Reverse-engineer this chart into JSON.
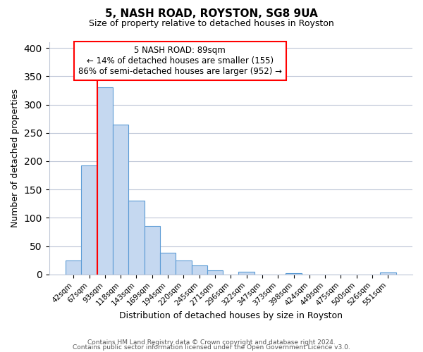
{
  "title": "5, NASH ROAD, ROYSTON, SG8 9UA",
  "subtitle": "Size of property relative to detached houses in Royston",
  "xlabel": "Distribution of detached houses by size in Royston",
  "ylabel": "Number of detached properties",
  "bar_labels": [
    "42sqm",
    "67sqm",
    "93sqm",
    "118sqm",
    "143sqm",
    "169sqm",
    "194sqm",
    "220sqm",
    "245sqm",
    "271sqm",
    "296sqm",
    "322sqm",
    "347sqm",
    "373sqm",
    "398sqm",
    "424sqm",
    "449sqm",
    "475sqm",
    "500sqm",
    "526sqm",
    "551sqm"
  ],
  "bar_values": [
    25,
    193,
    330,
    265,
    130,
    86,
    38,
    25,
    16,
    7,
    0,
    5,
    0,
    0,
    2,
    0,
    0,
    0,
    0,
    0,
    3
  ],
  "bar_color": "#c5d8f0",
  "bar_edge_color": "#5b9bd5",
  "ylim": [
    0,
    410
  ],
  "yticks": [
    0,
    50,
    100,
    150,
    200,
    250,
    300,
    350,
    400
  ],
  "vline_x": 1.5,
  "annotation_title": "5 NASH ROAD: 89sqm",
  "annotation_line1": "← 14% of detached houses are smaller (155)",
  "annotation_line2": "86% of semi-detached houses are larger (952) →",
  "footer_line1": "Contains HM Land Registry data © Crown copyright and database right 2024.",
  "footer_line2": "Contains public sector information licensed under the Open Government Licence v3.0.",
  "background_color": "#ffffff",
  "grid_color": "#c0c8d8"
}
